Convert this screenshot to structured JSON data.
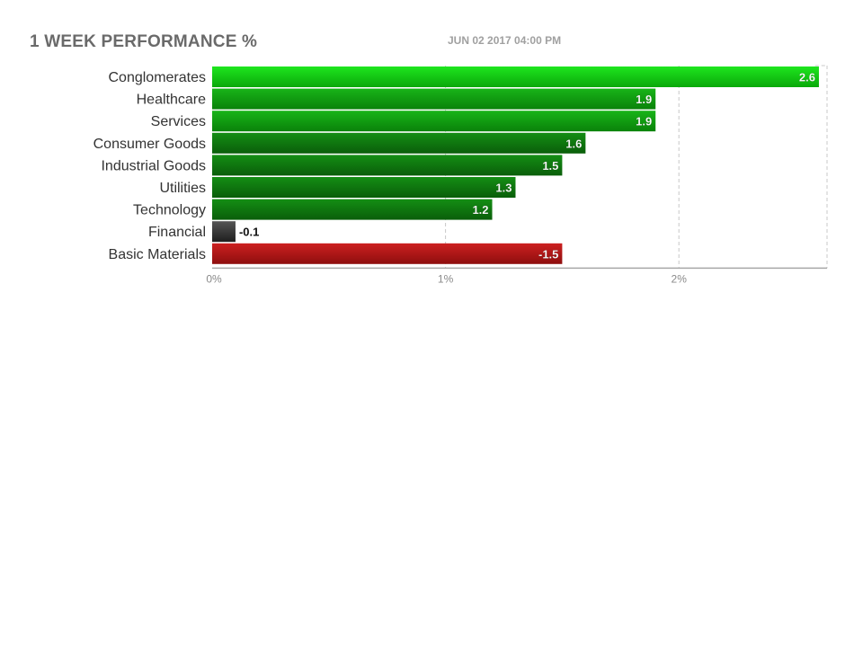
{
  "header": {
    "title": "1 WEEK PERFORMANCE %",
    "timestamp": "JUN 02 2017 04:00 PM"
  },
  "colors": {
    "positive": "#12b712",
    "negative": "#b01818",
    "near_zero": "#333333",
    "grid": "#c8c8c8",
    "axis": "#a8a8a8"
  },
  "chart_data": {
    "type": "bar",
    "orientation": "horizontal",
    "title": "1 WEEK PERFORMANCE %",
    "categories": [
      "Conglomerates",
      "Healthcare",
      "Services",
      "Consumer Goods",
      "Industrial Goods",
      "Utilities",
      "Technology",
      "Financial",
      "Basic Materials"
    ],
    "values": [
      2.6,
      1.9,
      1.9,
      1.6,
      1.5,
      1.3,
      1.2,
      -0.1,
      -1.5
    ],
    "value_labels": [
      "2.6",
      "1.9",
      "1.9",
      "1.6",
      "1.5",
      "1.3",
      "1.2",
      "-0.1",
      "-1.5"
    ],
    "bar_magnitude": "absolute value",
    "xticks": [
      "0%",
      "1%",
      "2%"
    ],
    "xtick_values": [
      0,
      1,
      2
    ],
    "xlim": [
      0,
      2.63
    ],
    "grid": true
  }
}
